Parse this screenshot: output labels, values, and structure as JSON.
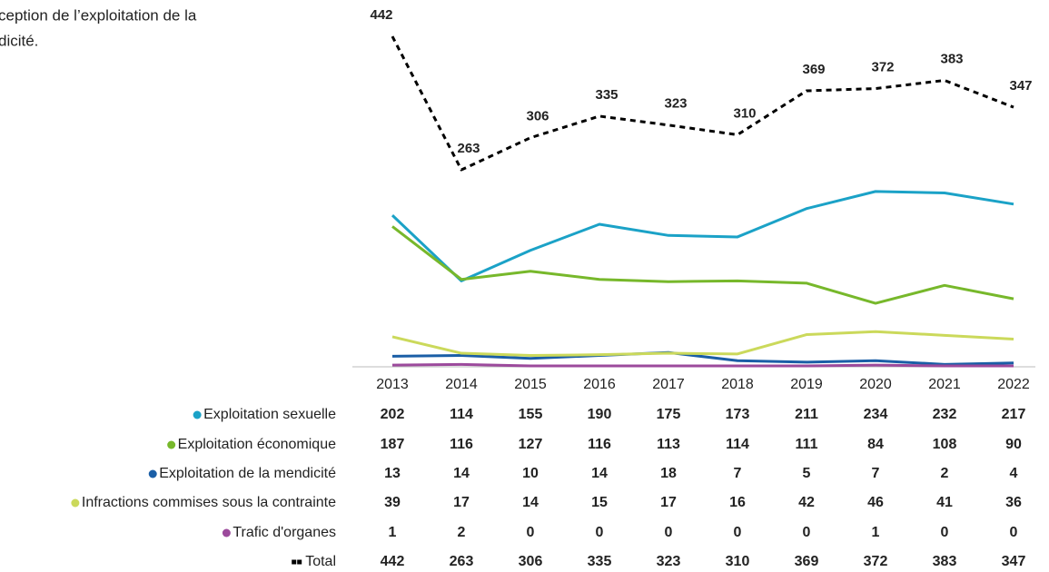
{
  "chart_data": {
    "type": "line",
    "annotations": [
      "ception  de l’exploitation de la",
      "dicité."
    ],
    "categories": [
      "2013",
      "2014",
      "2015",
      "2016",
      "2017",
      "2018",
      "2019",
      "2020",
      "2021",
      "2022"
    ],
    "ylim": [
      0,
      450
    ],
    "series": [
      {
        "name": "Exploitation sexuelle",
        "color": "#1ba2c7",
        "values": [
          202,
          114,
          155,
          190,
          175,
          173,
          211,
          234,
          232,
          217
        ]
      },
      {
        "name": "Exploitation économique",
        "color": "#77b82b",
        "values": [
          187,
          116,
          127,
          116,
          113,
          114,
          111,
          84,
          108,
          90
        ]
      },
      {
        "name": "Exploitation de la mendicité",
        "color": "#1a5ea6",
        "values": [
          13,
          14,
          10,
          14,
          18,
          7,
          5,
          7,
          2,
          4
        ]
      },
      {
        "name": "Infractions commises sous la contrainte",
        "color": "#cbd95b",
        "values": [
          39,
          17,
          14,
          15,
          17,
          16,
          42,
          46,
          41,
          36
        ]
      },
      {
        "name": "Trafic d'organes",
        "color": "#9c4a9c",
        "values": [
          1,
          2,
          0,
          0,
          0,
          0,
          0,
          1,
          0,
          0
        ]
      },
      {
        "name": "Total",
        "color": "#000000",
        "dashed": true,
        "values": [
          442,
          263,
          306,
          335,
          323,
          310,
          369,
          372,
          383,
          347
        ]
      }
    ]
  }
}
